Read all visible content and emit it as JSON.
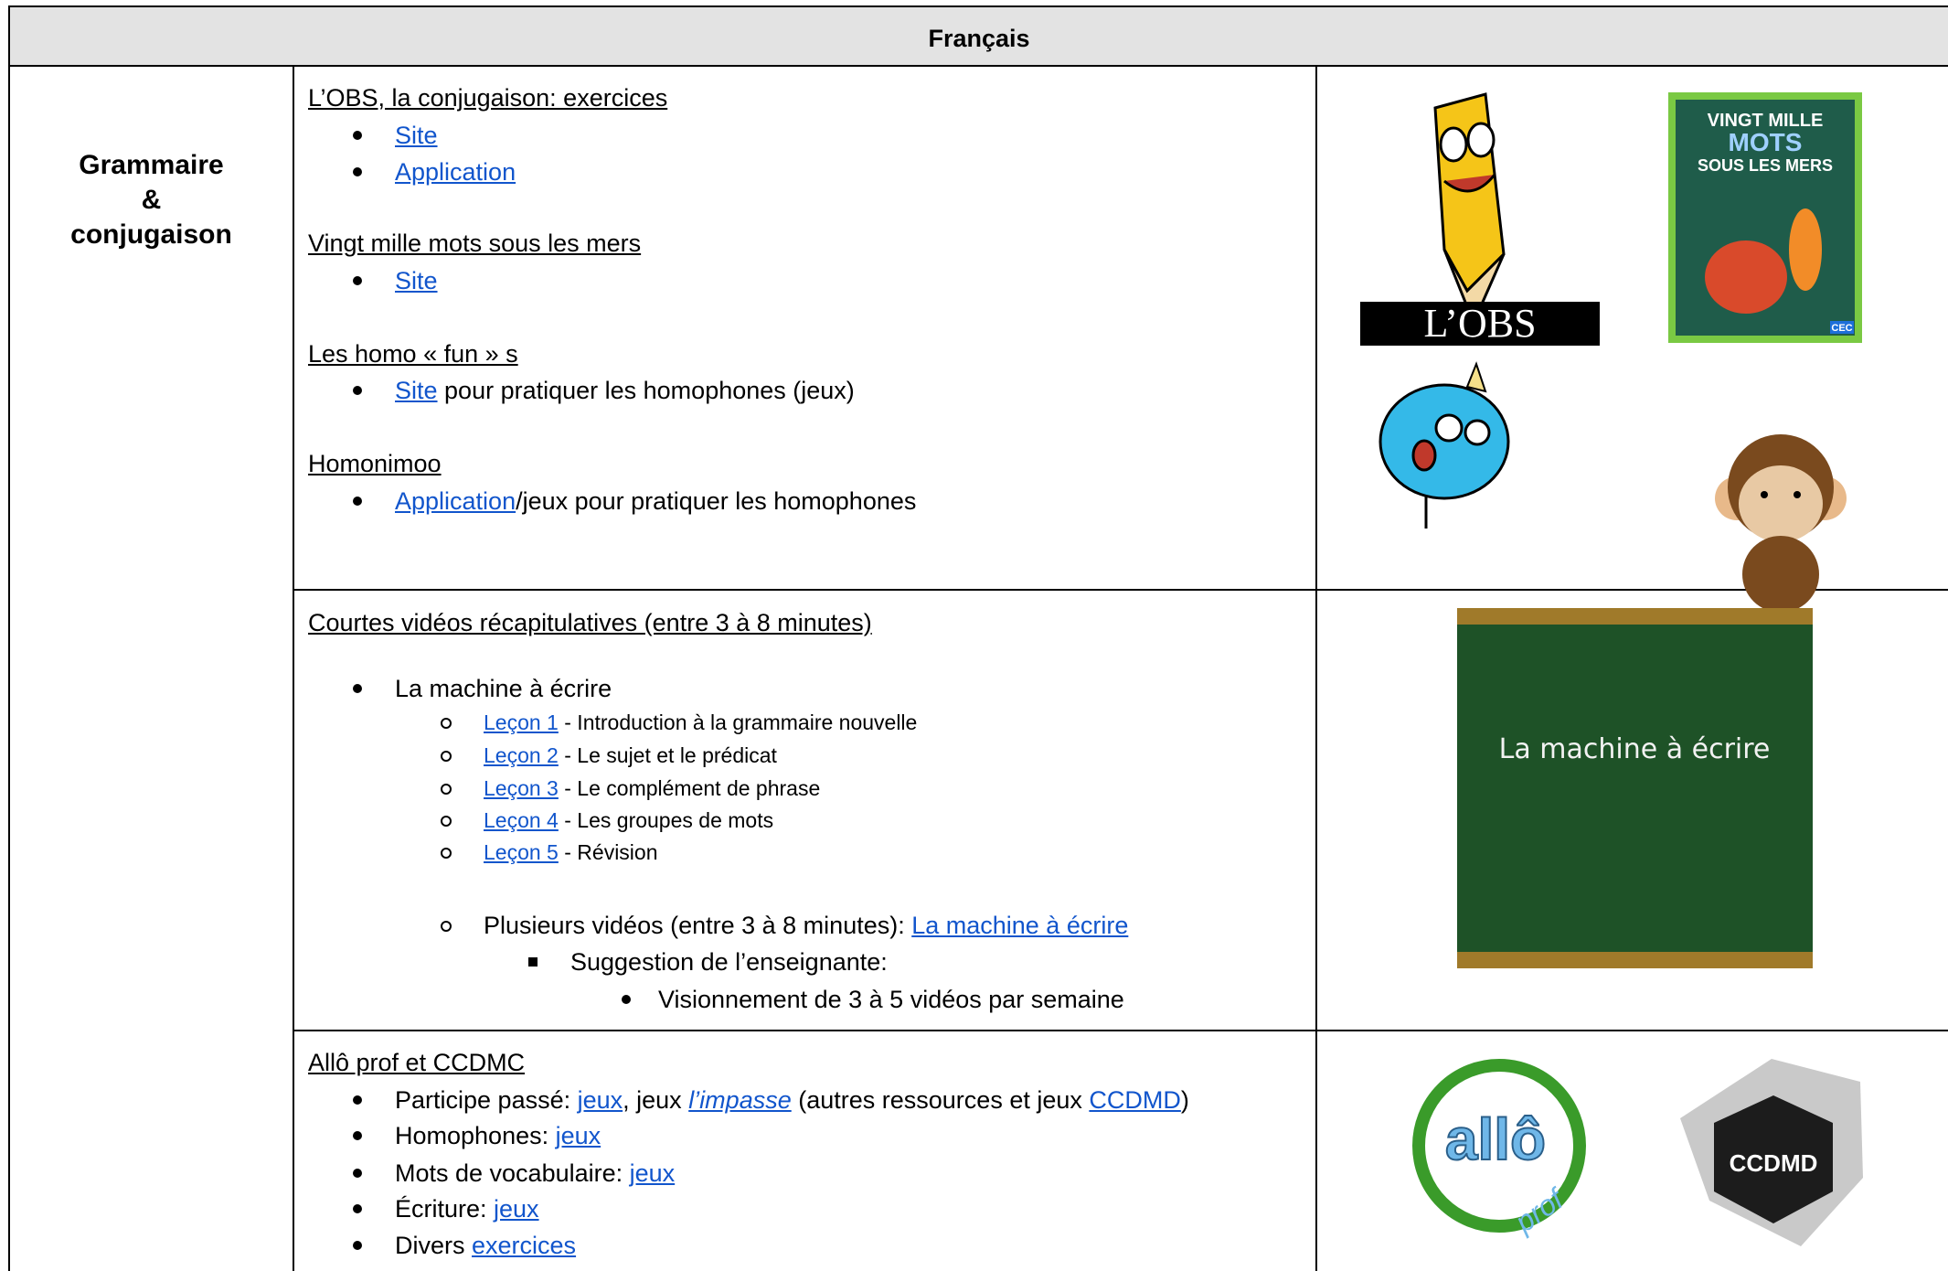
{
  "header": "Français",
  "section": [
    "Grammaire",
    "&",
    "conjugaison"
  ],
  "rows": [
    {
      "lines": [
        {
          "level": 0,
          "segments": [
            {
              "text": "L’OBS, la conjugaison: exercices",
              "link": false
            }
          ]
        },
        {
          "level": 1,
          "segments": [
            {
              "text": "Site",
              "link": true
            }
          ]
        },
        {
          "level": 1,
          "segments": [
            {
              "text": "Application",
              "link": true
            }
          ]
        },
        {
          "level": 0,
          "segments": [
            {
              "text": "Vingt mille mots sous les mers",
              "link": false
            }
          ]
        },
        {
          "level": 1,
          "segments": [
            {
              "text": "Site",
              "link": true
            }
          ]
        },
        {
          "level": 0,
          "segments": [
            {
              "text": "Les homo « fun » s",
              "link": false
            }
          ]
        },
        {
          "level": 1,
          "segments": [
            {
              "text": "Site",
              "link": true
            },
            {
              "text": " pour pratiquer les homophones (jeux)",
              "link": false
            }
          ]
        },
        {
          "level": 0,
          "segments": [
            {
              "text": "Homonimoo",
              "link": false
            }
          ]
        },
        {
          "level": 1,
          "segments": [
            {
              "text": "Application",
              "link": true
            },
            {
              "text": "/jeux pour pratiquer les homophones",
              "link": false
            }
          ]
        }
      ]
    },
    {
      "lines": [
        {
          "level": 0,
          "segments": [
            {
              "text": "Courtes vidéos récapitulatives (entre 3 à 8 minutes)",
              "link": false
            }
          ]
        },
        {
          "level": 1,
          "segments": [
            {
              "text": "La machine à écrire",
              "link": false
            }
          ]
        },
        {
          "level": 2,
          "small": true,
          "segments": [
            {
              "text": "Leçon 1",
              "link": true
            },
            {
              "text": " - Introduction à la grammaire nouvelle",
              "link": false
            }
          ]
        },
        {
          "level": 2,
          "small": true,
          "segments": [
            {
              "text": "Leçon 2",
              "link": true
            },
            {
              "text": " - Le sujet et le prédicat",
              "link": false
            }
          ]
        },
        {
          "level": 2,
          "small": true,
          "segments": [
            {
              "text": "Leçon 3",
              "link": true
            },
            {
              "text": " - Le complément de phrase",
              "link": false
            }
          ]
        },
        {
          "level": 2,
          "small": true,
          "segments": [
            {
              "text": "Leçon 4",
              "link": true
            },
            {
              "text": " - Les groupes de mots",
              "link": false
            }
          ]
        },
        {
          "level": 2,
          "small": true,
          "segments": [
            {
              "text": "Leçon 5",
              "link": true
            },
            {
              "text": " - Révision",
              "link": false
            }
          ]
        },
        {
          "level": 2,
          "segments": [
            {
              "text": "Plusieurs vidéos (entre 3 à 8 minutes): ",
              "link": false
            },
            {
              "text": "La machine à écrire",
              "link": true
            }
          ]
        },
        {
          "level": 3,
          "segments": [
            {
              "text": "Suggestion de l’enseignante:",
              "link": false
            }
          ]
        },
        {
          "level": 4,
          "segments": [
            {
              "text": "Visionnement de 3 à 5 vidéos par semaine",
              "link": false
            }
          ]
        }
      ]
    },
    {
      "lines": [
        {
          "level": 0,
          "segments": [
            {
              "text": "Allô prof et CCDMC",
              "link": false
            }
          ]
        },
        {
          "level": 1,
          "segments": [
            {
              "text": "Participe passé: ",
              "link": false
            },
            {
              "text": "jeux",
              "link": true
            },
            {
              "text": ", jeux ",
              "link": false
            },
            {
              "text": "l’impasse",
              "link": true,
              "italic": true
            },
            {
              "text": " (autres ressources et jeux ",
              "link": false
            },
            {
              "text": "CCDMD",
              "link": true
            },
            {
              "text": ")",
              "link": false
            }
          ]
        },
        {
          "level": 1,
          "segments": [
            {
              "text": "Homophones: ",
              "link": false
            },
            {
              "text": "jeux",
              "link": true
            }
          ]
        },
        {
          "level": 1,
          "segments": [
            {
              "text": "Mots de vocabulaire: ",
              "link": false
            },
            {
              "text": "jeux",
              "link": true
            }
          ]
        },
        {
          "level": 1,
          "segments": [
            {
              "text": "Écriture: ",
              "link": false
            },
            {
              "text": "jeux",
              "link": true
            }
          ]
        },
        {
          "level": 1,
          "segments": [
            {
              "text": "Divers ",
              "link": false
            },
            {
              "text": "exercices",
              "link": true
            }
          ]
        }
      ]
    }
  ],
  "images": {
    "obs": "L’OBS",
    "book": [
      "VINGT MILLE",
      "MOTS",
      "SOUS LES MERS"
    ],
    "book_publisher": "CEC",
    "chalkboard": "La machine à écrire",
    "allo": "allô",
    "prof": "prof",
    "ccdmd": "CCDMD"
  }
}
